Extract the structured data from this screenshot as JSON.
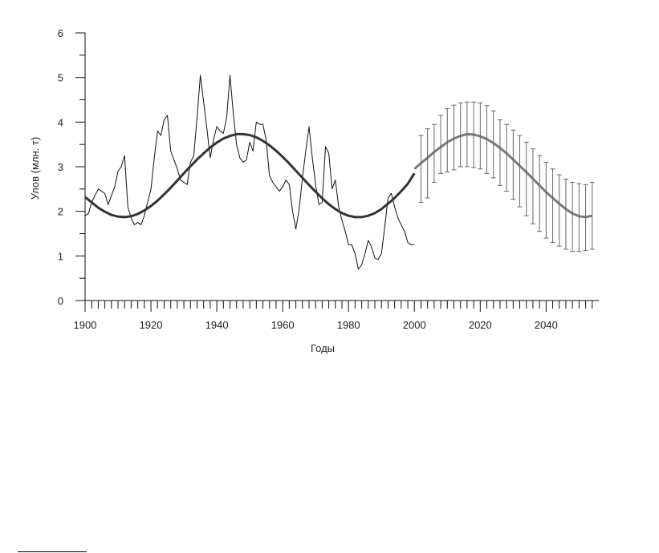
{
  "chart_data": {
    "type": "line",
    "title": "",
    "xlabel": "Годы",
    "ylabel": "Улов (млн. т)",
    "xlim": [
      1900,
      2056
    ],
    "ylim": [
      0,
      6
    ],
    "x_ticks": [
      1900,
      1920,
      1940,
      1960,
      1980,
      2000,
      2020,
      2040
    ],
    "y_ticks": [
      0,
      1,
      2,
      3,
      4,
      5,
      6
    ],
    "x_minor_step": 2,
    "y_minor_step": 0.5,
    "grid": false,
    "legend": "none",
    "colors": {
      "observed": "#111111",
      "trend": "#333333",
      "forecast": "#7a7a7a",
      "axis": "#111111"
    },
    "series": [
      {
        "role": "observed",
        "x": [
          1900,
          1901,
          1902,
          1903,
          1904,
          1905,
          1906,
          1907,
          1908,
          1909,
          1910,
          1911,
          1912,
          1913,
          1914,
          1915,
          1916,
          1917,
          1918,
          1919,
          1920,
          1921,
          1922,
          1923,
          1924,
          1925,
          1926,
          1927,
          1928,
          1929,
          1930,
          1931,
          1932,
          1933,
          1934,
          1935,
          1936,
          1937,
          1938,
          1939,
          1940,
          1941,
          1942,
          1943,
          1944,
          1945,
          1946,
          1947,
          1948,
          1949,
          1950,
          1951,
          1952,
          1953,
          1954,
          1955,
          1956,
          1957,
          1958,
          1959,
          1960,
          1961,
          1962,
          1963,
          1964,
          1965,
          1966,
          1967,
          1968,
          1969,
          1970,
          1971,
          1972,
          1973,
          1974,
          1975,
          1976,
          1977,
          1978,
          1979,
          1980,
          1981,
          1982,
          1983,
          1984,
          1985,
          1986,
          1987,
          1988,
          1989,
          1990,
          1991,
          1992,
          1993,
          1994,
          1995,
          1996,
          1997,
          1998,
          1999,
          2000
        ],
        "y": [
          1.9,
          1.95,
          2.2,
          2.35,
          2.5,
          2.45,
          2.4,
          2.15,
          2.35,
          2.55,
          2.9,
          3.0,
          3.25,
          2.1,
          1.85,
          1.7,
          1.75,
          1.7,
          1.9,
          2.2,
          2.5,
          3.2,
          3.8,
          3.7,
          4.05,
          4.15,
          3.35,
          3.15,
          2.95,
          2.7,
          2.65,
          2.6,
          3.1,
          3.25,
          4.1,
          5.05,
          4.45,
          3.85,
          3.2,
          3.6,
          3.9,
          3.8,
          3.75,
          4.1,
          5.05,
          4.2,
          3.5,
          3.2,
          3.1,
          3.15,
          3.55,
          3.35,
          4.0,
          3.95,
          3.95,
          3.6,
          2.8,
          2.65,
          2.55,
          2.45,
          2.55,
          2.7,
          2.6,
          2.0,
          1.6,
          2.05,
          2.75,
          3.35,
          3.9,
          3.2,
          2.6,
          2.15,
          2.2,
          3.45,
          3.3,
          2.5,
          2.7,
          2.1,
          1.8,
          1.55,
          1.25,
          1.25,
          1.05,
          0.7,
          0.8,
          1.05,
          1.35,
          1.2,
          0.95,
          0.92,
          1.05,
          1.65,
          2.3,
          2.4,
          2.1,
          1.85,
          1.7,
          1.55,
          1.3,
          1.25,
          1.25
        ]
      },
      {
        "role": "trend",
        "x": [
          1900,
          1902,
          1904,
          1906,
          1908,
          1910,
          1912,
          1914,
          1916,
          1918,
          1920,
          1922,
          1924,
          1926,
          1928,
          1930,
          1932,
          1934,
          1936,
          1938,
          1940,
          1942,
          1944,
          1946,
          1948,
          1950,
          1952,
          1954,
          1956,
          1958,
          1960,
          1962,
          1964,
          1966,
          1968,
          1970,
          1972,
          1974,
          1976,
          1978,
          1980,
          1982,
          1984,
          1986,
          1988,
          1990,
          1992,
          1994,
          1996,
          1998,
          2000
        ],
        "y": [
          2.32,
          2.2,
          2.08,
          1.99,
          1.92,
          1.88,
          1.87,
          1.89,
          1.94,
          2.02,
          2.12,
          2.24,
          2.38,
          2.53,
          2.69,
          2.85,
          3.01,
          3.16,
          3.3,
          3.43,
          3.54,
          3.63,
          3.69,
          3.73,
          3.73,
          3.71,
          3.66,
          3.58,
          3.48,
          3.36,
          3.22,
          3.07,
          2.91,
          2.75,
          2.59,
          2.44,
          2.29,
          2.16,
          2.05,
          1.96,
          1.9,
          1.87,
          1.87,
          1.9,
          1.96,
          2.05,
          2.17,
          2.3,
          2.45,
          2.62,
          2.85
        ]
      },
      {
        "role": "forecast",
        "x": [
          2000,
          2002,
          2004,
          2006,
          2008,
          2010,
          2012,
          2014,
          2016,
          2018,
          2020,
          2022,
          2024,
          2026,
          2028,
          2030,
          2032,
          2034,
          2036,
          2038,
          2040,
          2042,
          2044,
          2046,
          2048,
          2050,
          2052,
          2054
        ],
        "y": [
          2.95,
          3.08,
          3.2,
          3.33,
          3.44,
          3.55,
          3.63,
          3.69,
          3.73,
          3.72,
          3.68,
          3.62,
          3.53,
          3.42,
          3.3,
          3.16,
          3.02,
          2.88,
          2.73,
          2.58,
          2.43,
          2.3,
          2.17,
          2.05,
          1.95,
          1.89,
          1.87,
          1.9
        ],
        "error_x": [
          2002,
          2004,
          2006,
          2008,
          2010,
          2012,
          2014,
          2016,
          2018,
          2020,
          2022,
          2024,
          2026,
          2028,
          2030,
          2032,
          2034,
          2036,
          2038,
          2040,
          2042,
          2044,
          2046,
          2048,
          2050,
          2052,
          2054
        ],
        "error_low": [
          2.2,
          2.3,
          2.65,
          2.85,
          2.88,
          2.93,
          3.0,
          3.0,
          2.98,
          2.95,
          2.85,
          2.75,
          2.58,
          2.45,
          2.27,
          2.1,
          1.9,
          1.72,
          1.55,
          1.4,
          1.3,
          1.22,
          1.15,
          1.1,
          1.1,
          1.12,
          1.15
        ],
        "error_high": [
          3.7,
          3.85,
          3.95,
          4.15,
          4.3,
          4.38,
          4.43,
          4.45,
          4.45,
          4.43,
          4.37,
          4.25,
          4.05,
          3.95,
          3.82,
          3.7,
          3.55,
          3.4,
          3.25,
          3.1,
          2.95,
          2.82,
          2.72,
          2.65,
          2.62,
          2.6,
          2.65
        ]
      }
    ]
  }
}
